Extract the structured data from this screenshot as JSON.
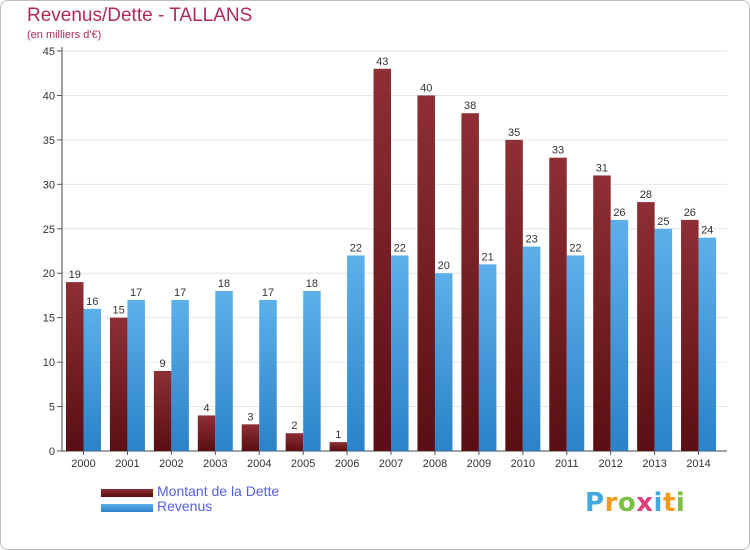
{
  "header": {
    "title": "Revenus/Dette - TALLANS",
    "subtitle": "(en milliers d'€)"
  },
  "chart_data": {
    "type": "bar",
    "title": "Revenus/Dette - TALLANS",
    "subtitle": "(en milliers d'€)",
    "xlabel": "",
    "ylabel": "",
    "ylim": [
      0,
      45
    ],
    "yticks": [
      0,
      5,
      10,
      15,
      20,
      25,
      30,
      35,
      40,
      45
    ],
    "grid": true,
    "categories": [
      "2000",
      "2001",
      "2002",
      "2003",
      "2004",
      "2005",
      "2006",
      "2007",
      "2008",
      "2009",
      "2010",
      "2011",
      "2012",
      "2013",
      "2014"
    ],
    "series": [
      {
        "name": "Montant de la Dette",
        "color": "#7a1e24",
        "values": [
          19,
          15,
          9,
          4,
          3,
          2,
          1,
          43,
          40,
          38,
          35,
          33,
          31,
          28,
          26
        ]
      },
      {
        "name": "Revenus",
        "color": "#3d9be0",
        "values": [
          16,
          17,
          17,
          18,
          17,
          18,
          22,
          22,
          20,
          21,
          23,
          22,
          26,
          25,
          24
        ]
      }
    ],
    "legend_position": "bottom-left"
  },
  "legend": {
    "items": [
      {
        "label": "Montant de la Dette",
        "color": "#7a1e24"
      },
      {
        "label": "Revenus",
        "color": "#3d9be0"
      }
    ]
  },
  "brand": {
    "letters": [
      "P",
      "r",
      "o",
      "x",
      "i",
      "t",
      "i"
    ],
    "colors": [
      "#3fa9e0",
      "#f29b1d",
      "#7cc142",
      "#e2407a",
      "#3fa9e0",
      "#f29b1d",
      "#7cc142"
    ]
  }
}
